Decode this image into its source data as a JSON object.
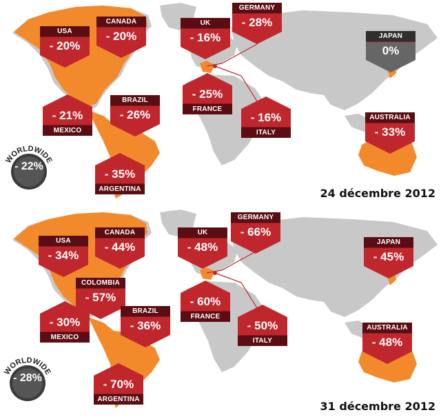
{
  "colors": {
    "callout_red": "#c0272d",
    "label_dark_red": "#5a0d12",
    "highlight_orange": "#f28a2c",
    "land_grey": "#c8c8c8",
    "japan_grey": "#666666"
  },
  "panels": [
    {
      "date": "24 décembre 2012",
      "worldwide": {
        "label": "WORLDWIDE",
        "value": "- 22%"
      },
      "callouts": [
        {
          "country": "USA",
          "value": "- 20%"
        },
        {
          "country": "CANADA",
          "value": "- 20%"
        },
        {
          "country": "UK",
          "value": "- 16%"
        },
        {
          "country": "GERMANY",
          "value": "- 28%"
        },
        {
          "country": "JAPAN",
          "value": "0%"
        },
        {
          "country": "MEXICO",
          "value": "- 21%"
        },
        {
          "country": "BRAZIL",
          "value": "- 26%"
        },
        {
          "country": "FRANCE",
          "value": "- 25%"
        },
        {
          "country": "ITALY",
          "value": "- 16%"
        },
        {
          "country": "AUSTRALIA",
          "value": "- 33%"
        },
        {
          "country": "ARGENTINA",
          "value": "- 35%"
        }
      ]
    },
    {
      "date": "31 décembre 2012",
      "worldwide": {
        "label": "WORLDWIDE",
        "value": "- 28%"
      },
      "callouts": [
        {
          "country": "USA",
          "value": "- 34%"
        },
        {
          "country": "CANADA",
          "value": "- 44%"
        },
        {
          "country": "UK",
          "value": "- 48%"
        },
        {
          "country": "GERMANY",
          "value": "- 66%"
        },
        {
          "country": "JAPAN",
          "value": "- 45%"
        },
        {
          "country": "COLOMBIA",
          "value": "- 57%"
        },
        {
          "country": "MEXICO",
          "value": "- 30%"
        },
        {
          "country": "BRAZIL",
          "value": "- 36%"
        },
        {
          "country": "FRANCE",
          "value": "- 60%"
        },
        {
          "country": "ITALY",
          "value": "- 50%"
        },
        {
          "country": "AUSTRALIA",
          "value": "- 48%"
        },
        {
          "country": "ARGENTINA",
          "value": "- 70%"
        }
      ]
    }
  ]
}
